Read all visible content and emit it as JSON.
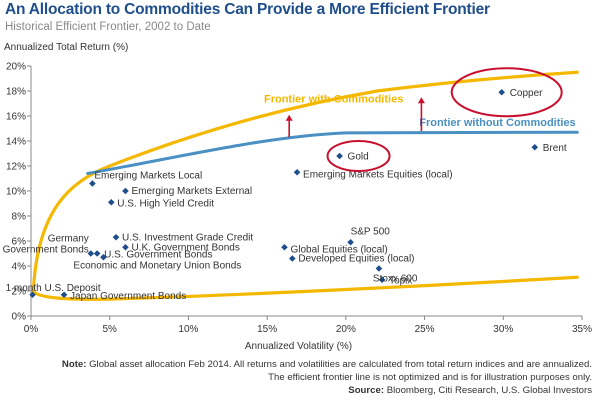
{
  "header": {
    "title": "An Allocation to Commodities Can Provide a More Efficient Frontier",
    "subtitle": "Historical Efficient Frontier, 2002 to Date"
  },
  "chart_data": {
    "type": "scatter",
    "title": "An Allocation to Commodities Can Provide a More Efficient Frontier",
    "subtitle": "Historical Efficient Frontier, 2002 to Date",
    "xlabel": "Annualized Volatility (%)",
    "ylabel": "Annualized Total Return (%)",
    "xlim": [
      0,
      35
    ],
    "ylim": [
      0,
      20
    ],
    "x_ticks": [
      "0%",
      "5%",
      "10%",
      "15%",
      "20%",
      "25%",
      "30%",
      "35%"
    ],
    "y_ticks": [
      "0%",
      "2%",
      "4%",
      "6%",
      "8%",
      "10%",
      "12%",
      "14%",
      "16%",
      "18%",
      "20%"
    ],
    "grid": false,
    "point_color": "#1f4e8c",
    "points": [
      {
        "label": "1 month U.S. Deposit",
        "x": 0.1,
        "y": 1.7
      },
      {
        "label": "Japan Government Bonds",
        "x": 2.1,
        "y": 1.7
      },
      {
        "label": "Economic and Monetary Union Bonds",
        "x": 4.6,
        "y": 4.7
      },
      {
        "label": "Germany Government Bonds",
        "x": 3.8,
        "y": 5.0
      },
      {
        "label": "U.S. Government Bonds",
        "x": 4.2,
        "y": 5.0
      },
      {
        "label": "U.K. Government Bonds",
        "x": 6.0,
        "y": 5.5
      },
      {
        "label": "U.S. Investment Grade Credit",
        "x": 5.4,
        "y": 6.3
      },
      {
        "label": "U.S. High Yield Credit",
        "x": 5.1,
        "y": 9.1
      },
      {
        "label": "Emerging Markets External",
        "x": 6.0,
        "y": 10.0
      },
      {
        "label": "Emerging Markets Local",
        "x": 3.9,
        "y": 10.6
      },
      {
        "label": "Emerging Markets Equities (local)",
        "x": 16.9,
        "y": 11.5
      },
      {
        "label": "Gold",
        "x": 19.6,
        "y": 12.8
      },
      {
        "label": "Copper",
        "x": 29.9,
        "y": 17.9
      },
      {
        "label": "Brent",
        "x": 32.0,
        "y": 13.5
      },
      {
        "label": "S&P 500",
        "x": 20.3,
        "y": 5.9
      },
      {
        "label": "Global Equities (local)",
        "x": 16.1,
        "y": 5.5
      },
      {
        "label": "Developed Equities (local)",
        "x": 16.6,
        "y": 4.6
      },
      {
        "label": "Stoxx 600",
        "x": 22.1,
        "y": 3.8
      },
      {
        "label": "Topix",
        "x": 22.3,
        "y": 2.9
      }
    ],
    "series": [
      {
        "name": "Frontier with Commodities",
        "color": "#f5b800"
      },
      {
        "name": "Frontier without Commodities",
        "color": "#4a90c2"
      }
    ],
    "highlighted": [
      "Gold",
      "Copper"
    ],
    "highlight_color": "#c8102e"
  },
  "footer": {
    "note_label": "Note:",
    "note_line1": "Global asset allocation Feb 2014. All returns and volatilities are calculated from total return indices and are annualized.",
    "note_line2": "The efficient frontier line is not optimized and is for illustration purposes only.",
    "source_label": "Source:",
    "source_text": "Bloomberg, Citi Research, U.S. Global Investors"
  }
}
